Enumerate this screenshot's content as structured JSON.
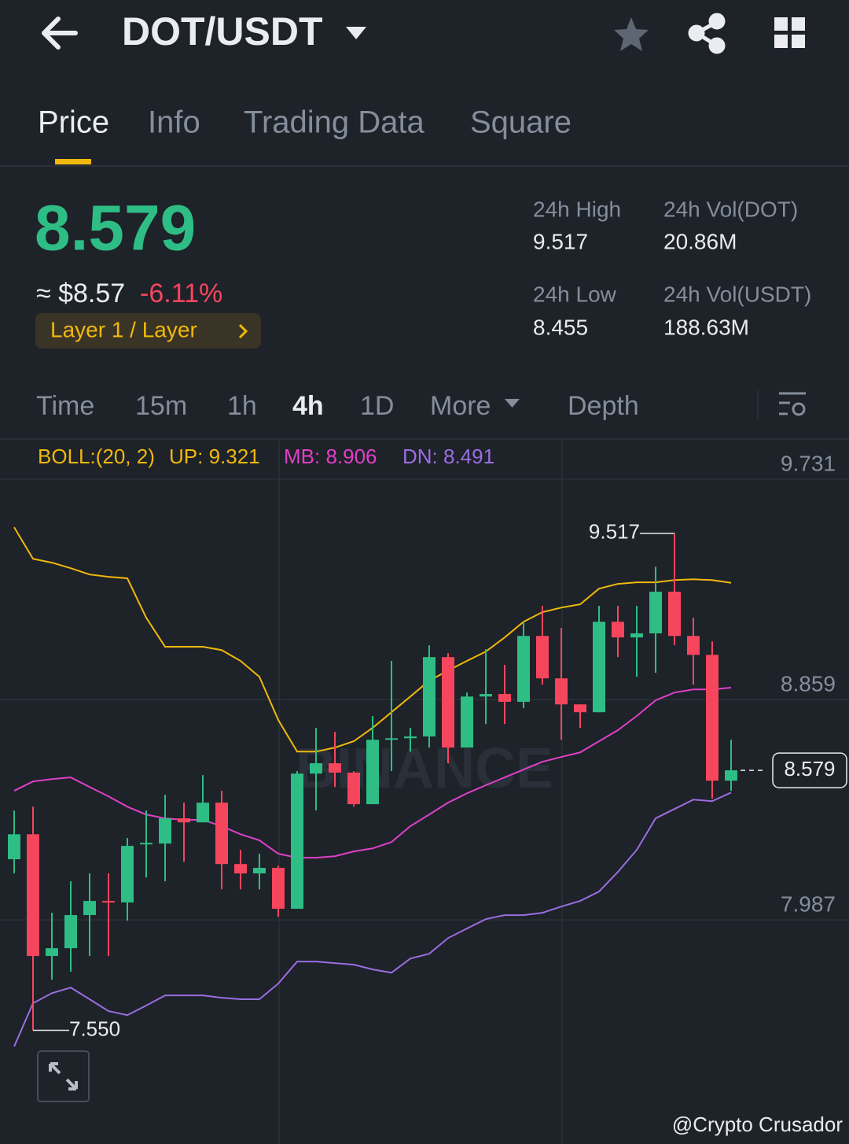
{
  "header": {
    "title": "DOT/USDT"
  },
  "tabs": [
    "Price",
    "Info",
    "Trading Data",
    "Square"
  ],
  "summary": {
    "last": "8.579",
    "usd": "≈ $8.57",
    "change": "-6.11%",
    "tag": "Layer 1 / Layer"
  },
  "stats": [
    {
      "label": "24h High",
      "value": "9.517"
    },
    {
      "label": "24h Vol(DOT)",
      "value": "20.86M"
    },
    {
      "label": "24h Low",
      "value": "8.455"
    },
    {
      "label": "24h Vol(USDT)",
      "value": "188.63M"
    }
  ],
  "intervals": [
    "Time",
    "15m",
    "1h",
    "4h",
    "1D",
    "More",
    "Depth"
  ],
  "chart_data": {
    "type": "candlestick",
    "indicator": {
      "name": "BOLL:(20, 2)",
      "up": "UP: 9.321",
      "mb": "MB: 8.906",
      "dn": "DN: 8.491"
    },
    "open": [
      8.227,
      8.326,
      7.844,
      7.875,
      8.006,
      8.062,
      8.056,
      8.286,
      8.289,
      8.389,
      8.373,
      8.451,
      8.208,
      8.171,
      8.193,
      8.031,
      8.566,
      8.607,
      8.57,
      8.445,
      8.7,
      8.706,
      8.713,
      9.027,
      8.669,
      8.871,
      8.881,
      8.85,
      9.111,
      8.943,
      8.84,
      8.809,
      9.167,
      9.105,
      9.121,
      9.286,
      9.111,
      9.036,
      8.538
    ],
    "high": [
      8.42,
      8.435,
      8.015,
      8.14,
      8.171,
      8.171,
      8.311,
      8.42,
      8.482,
      8.451,
      8.56,
      8.498,
      8.264,
      8.249,
      8.202,
      8.576,
      8.747,
      8.731,
      8.576,
      8.794,
      9.012,
      8.747,
      9.074,
      9.043,
      8.887,
      9.058,
      8.996,
      9.167,
      9.23,
      9.142,
      8.84,
      9.23,
      9.23,
      9.23,
      9.385,
      9.517,
      9.183,
      9.089,
      8.7
    ],
    "low": [
      8.171,
      7.55,
      7.75,
      7.782,
      7.844,
      7.844,
      7.984,
      8.155,
      8.14,
      8.217,
      8.373,
      8.108,
      8.108,
      8.108,
      7.999,
      8.031,
      8.42,
      8.513,
      8.435,
      8.445,
      8.576,
      8.653,
      8.669,
      8.607,
      8.669,
      8.762,
      8.762,
      8.825,
      8.918,
      8.7,
      8.747,
      8.809,
      9.027,
      8.949,
      8.965,
      9.074,
      8.918,
      8.467,
      8.498
    ],
    "close": [
      8.326,
      7.844,
      7.875,
      8.006,
      8.062,
      8.056,
      8.28,
      8.292,
      8.389,
      8.373,
      8.451,
      8.208,
      8.171,
      8.193,
      8.031,
      8.566,
      8.607,
      8.57,
      8.445,
      8.7,
      8.706,
      8.713,
      9.027,
      8.669,
      8.871,
      8.881,
      8.85,
      9.111,
      8.943,
      8.84,
      8.809,
      9.167,
      9.105,
      9.121,
      9.286,
      9.111,
      9.036,
      8.538,
      8.579
    ],
    "series": [
      {
        "color": "#f0b90b",
        "values": [
          9.541,
          9.416,
          9.401,
          9.379,
          9.354,
          9.345,
          9.339,
          9.183,
          9.068,
          9.068,
          9.068,
          9.055,
          9.012,
          8.949,
          8.778,
          8.653,
          8.653,
          8.669,
          8.694,
          8.747,
          8.809,
          8.871,
          8.934,
          8.974,
          9.012,
          9.049,
          9.105,
          9.167,
          9.205,
          9.223,
          9.236,
          9.298,
          9.317,
          9.323,
          9.323,
          9.332,
          9.335,
          9.332,
          9.321
        ]
      },
      {
        "color": "#e040c8",
        "values": [
          8.498,
          8.535,
          8.544,
          8.551,
          8.513,
          8.476,
          8.435,
          8.404,
          8.389,
          8.383,
          8.383,
          8.358,
          8.326,
          8.302,
          8.249,
          8.233,
          8.233,
          8.239,
          8.258,
          8.27,
          8.295,
          8.358,
          8.404,
          8.451,
          8.488,
          8.52,
          8.551,
          8.582,
          8.613,
          8.632,
          8.65,
          8.694,
          8.738,
          8.794,
          8.856,
          8.887,
          8.899,
          8.899,
          8.906
        ]
      },
      {
        "color": "#9a6ee0",
        "values": [
          7.486,
          7.657,
          7.697,
          7.719,
          7.673,
          7.626,
          7.61,
          7.648,
          7.688,
          7.688,
          7.688,
          7.679,
          7.673,
          7.673,
          7.735,
          7.822,
          7.822,
          7.816,
          7.81,
          7.791,
          7.778,
          7.834,
          7.853,
          7.915,
          7.953,
          7.99,
          8.006,
          8.006,
          8.015,
          8.04,
          8.062,
          8.099,
          8.177,
          8.264,
          8.389,
          8.426,
          8.463,
          8.457,
          8.491
        ]
      }
    ],
    "up_color": "#2ebd85",
    "down_color": "#f6465d",
    "ylim": [
      7.1,
      9.884
    ],
    "yticks": [
      9.731,
      8.859,
      7.987
    ],
    "grid": true,
    "annotations": {
      "max": "9.517",
      "min": "7.550",
      "last": "8.579"
    },
    "watermark": "BINANCE"
  },
  "credit": "@Crypto Crusador"
}
